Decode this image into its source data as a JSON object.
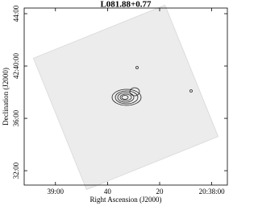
{
  "chart_data": {
    "type": "image",
    "title": "L081.88+0.77",
    "xlabel": "Right Ascension (J2000)",
    "ylabel": "Declination (J2000)",
    "xlim": [
      72,
      -6
    ],
    "xticks": [
      {
        "value": 60,
        "label": "39:00"
      },
      40,
      20,
      {
        "value": 0,
        "label": "20:38:00"
      }
    ],
    "ylim": [
      30.9,
      44.43
    ],
    "yticks": [
      {
        "value": 44,
        "label": "44:00"
      },
      {
        "value": 40,
        "label": "42:40:00"
      },
      {
        "value": 36,
        "label": "36:00"
      },
      {
        "value": 32,
        "label": "32:00"
      }
    ]
  }
}
